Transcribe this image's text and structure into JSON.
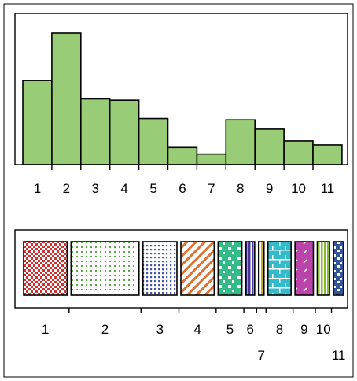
{
  "chart_data": [
    {
      "type": "bar",
      "categories": [
        "1",
        "2",
        "3",
        "4",
        "5",
        "6",
        "7",
        "8",
        "9",
        "10",
        "11"
      ],
      "values": [
        0.64,
        1.0,
        0.5,
        0.49,
        0.35,
        0.13,
        0.08,
        0.34,
        0.27,
        0.18,
        0.15
      ],
      "ylim": [
        0,
        1
      ],
      "bar_color": "#99cc77",
      "edge_color": "#000000",
      "title": "",
      "xlabel": "",
      "ylabel": "",
      "grid": false,
      "legend": "none"
    },
    {
      "type": "bar",
      "orientation": "spine",
      "categories": [
        "1",
        "2",
        "3",
        "4",
        "5",
        "6",
        "7",
        "8",
        "9",
        "10",
        "11"
      ],
      "values": [
        0.64,
        1.0,
        0.5,
        0.49,
        0.35,
        0.13,
        0.08,
        0.34,
        0.27,
        0.18,
        0.15
      ],
      "patterns": [
        {
          "kind": "checker",
          "color": "#d03030"
        },
        {
          "kind": "dots",
          "color": "#55aa44"
        },
        {
          "kind": "grid-dots",
          "color": "#4455aa"
        },
        {
          "kind": "diagonal",
          "color": "#e07030"
        },
        {
          "kind": "blocks",
          "color": "#33bb88"
        },
        {
          "kind": "vertical",
          "color": "#443399"
        },
        {
          "kind": "vertical",
          "color": "#ccaa22"
        },
        {
          "kind": "bricks",
          "color": "#33bbcc"
        },
        {
          "kind": "diagonal-dash",
          "color": "#bb44aa"
        },
        {
          "kind": "vertical",
          "color": "#88bb33"
        },
        {
          "kind": "zigzag",
          "color": "#335599"
        }
      ],
      "title": "",
      "xlabel": "",
      "ylabel": "",
      "grid": false,
      "legend": "none"
    }
  ]
}
